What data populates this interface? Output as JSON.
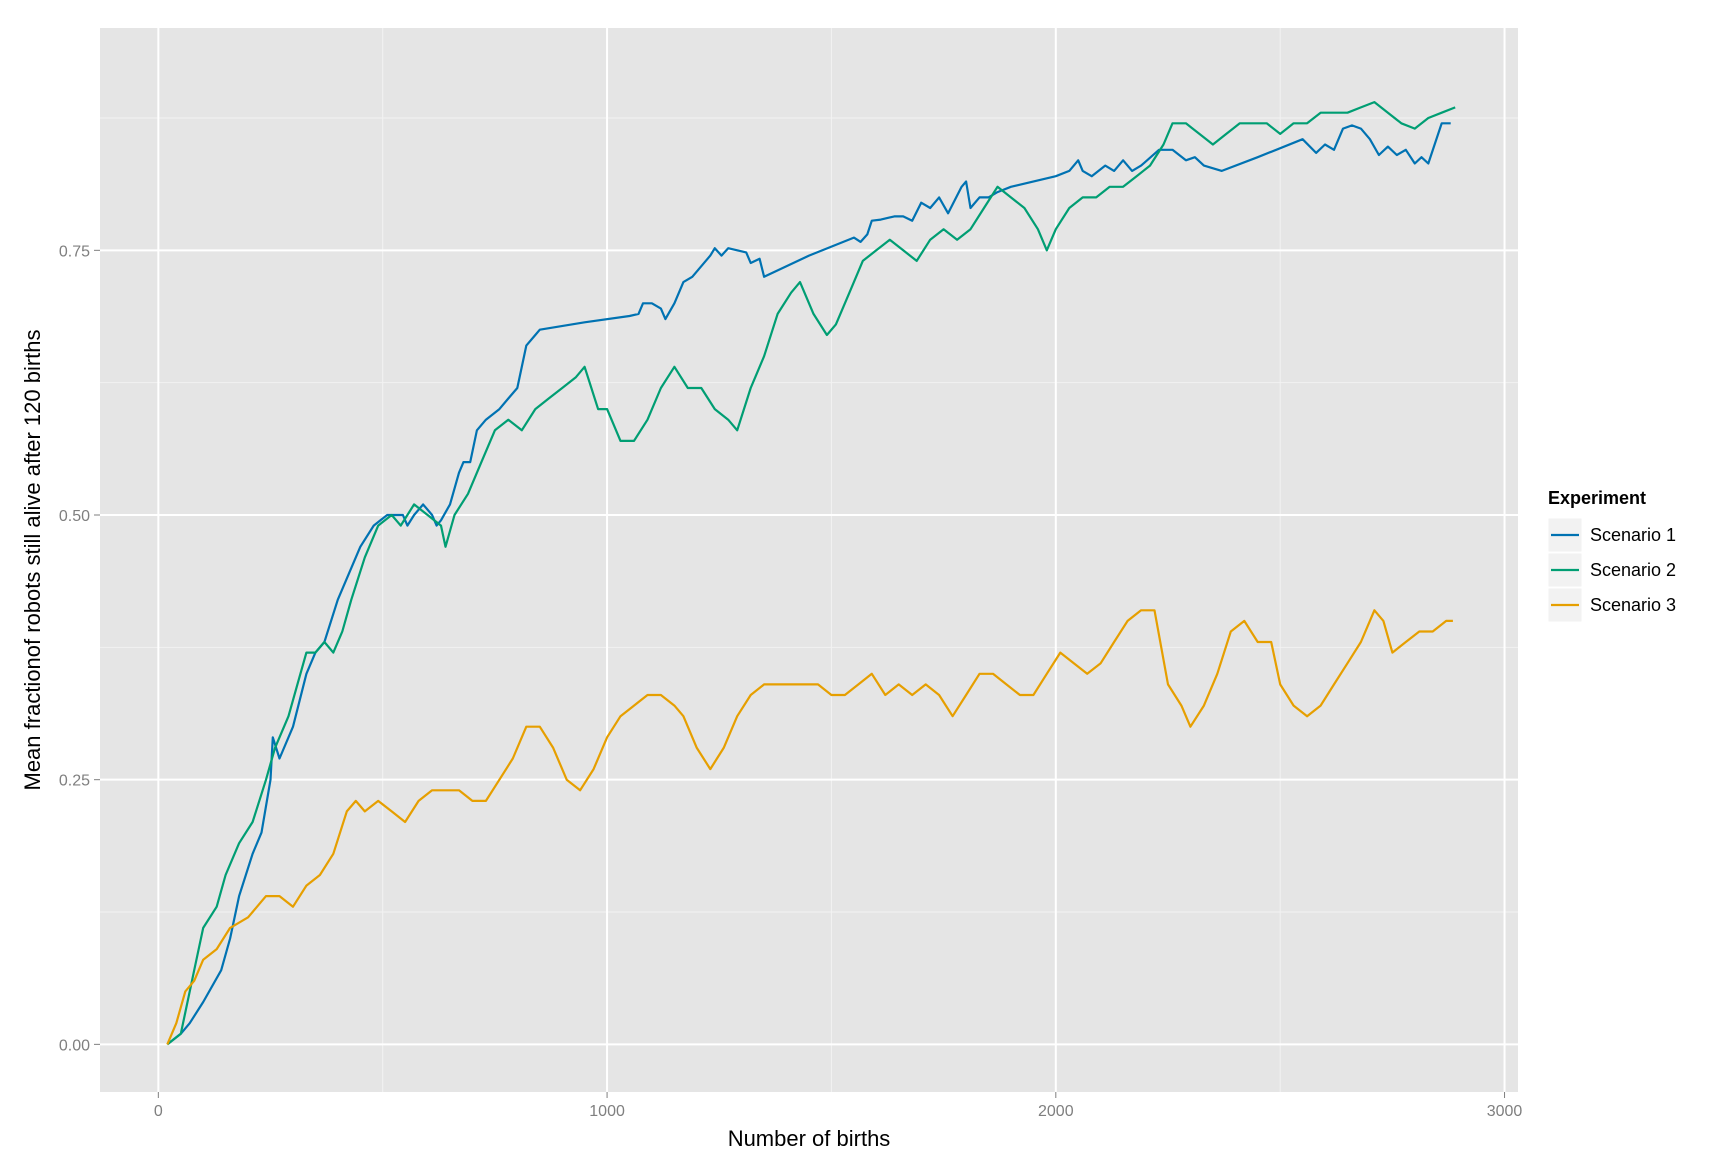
{
  "chart_data": {
    "type": "line",
    "xlabel": "Number of births",
    "ylabel": "Mean fractionof robots still alive after 120 births",
    "xlim": [
      -130,
      3030
    ],
    "ylim": [
      -0.045,
      0.96
    ],
    "x_ticks": [
      0,
      1000,
      2000,
      3000
    ],
    "x_tick_labels": [
      "0",
      "1000",
      "2000",
      "3000"
    ],
    "y_ticks": [
      0,
      0.25,
      0.5,
      0.75
    ],
    "y_tick_labels": [
      "0.00",
      "0.25",
      "0.50",
      "0.75"
    ],
    "grid": true,
    "background": "#e5e5e5",
    "legend": {
      "title": "Experiment",
      "position": "right"
    },
    "series": [
      {
        "name": "Scenario 1",
        "color": "#0072b2",
        "points": [
          [
            20,
            0
          ],
          [
            50,
            0.01
          ],
          [
            70,
            0.02
          ],
          [
            100,
            0.04
          ],
          [
            140,
            0.07
          ],
          [
            160,
            0.1
          ],
          [
            180,
            0.14
          ],
          [
            210,
            0.18
          ],
          [
            230,
            0.2
          ],
          [
            250,
            0.25
          ],
          [
            255,
            0.29
          ],
          [
            270,
            0.27
          ],
          [
            300,
            0.3
          ],
          [
            330,
            0.35
          ],
          [
            350,
            0.37
          ],
          [
            370,
            0.38
          ],
          [
            400,
            0.42
          ],
          [
            450,
            0.47
          ],
          [
            480,
            0.49
          ],
          [
            510,
            0.5
          ],
          [
            530,
            0.5
          ],
          [
            545,
            0.5
          ],
          [
            555,
            0.49
          ],
          [
            570,
            0.5
          ],
          [
            590,
            0.51
          ],
          [
            610,
            0.5
          ],
          [
            620,
            0.49
          ],
          [
            630,
            0.495
          ],
          [
            650,
            0.51
          ],
          [
            670,
            0.54
          ],
          [
            680,
            0.55
          ],
          [
            695,
            0.55
          ],
          [
            710,
            0.58
          ],
          [
            730,
            0.59
          ],
          [
            760,
            0.6
          ],
          [
            780,
            0.61
          ],
          [
            800,
            0.62
          ],
          [
            820,
            0.66
          ],
          [
            840,
            0.67
          ],
          [
            850,
            0.675
          ],
          [
            950,
            0.682
          ],
          [
            1050,
            0.688
          ],
          [
            1070,
            0.69
          ],
          [
            1080,
            0.7
          ],
          [
            1100,
            0.7
          ],
          [
            1120,
            0.695
          ],
          [
            1130,
            0.685
          ],
          [
            1150,
            0.7
          ],
          [
            1170,
            0.72
          ],
          [
            1190,
            0.725
          ],
          [
            1210,
            0.735
          ],
          [
            1230,
            0.745
          ],
          [
            1240,
            0.752
          ],
          [
            1255,
            0.745
          ],
          [
            1270,
            0.752
          ],
          [
            1290,
            0.75
          ],
          [
            1310,
            0.748
          ],
          [
            1320,
            0.738
          ],
          [
            1340,
            0.742
          ],
          [
            1350,
            0.725
          ],
          [
            1450,
            0.745
          ],
          [
            1550,
            0.762
          ],
          [
            1565,
            0.758
          ],
          [
            1580,
            0.765
          ],
          [
            1590,
            0.778
          ],
          [
            1610,
            0.779
          ],
          [
            1640,
            0.782
          ],
          [
            1660,
            0.782
          ],
          [
            1680,
            0.778
          ],
          [
            1700,
            0.795
          ],
          [
            1720,
            0.79
          ],
          [
            1740,
            0.8
          ],
          [
            1760,
            0.785
          ],
          [
            1790,
            0.81
          ],
          [
            1800,
            0.815
          ],
          [
            1810,
            0.79
          ],
          [
            1830,
            0.8
          ],
          [
            1850,
            0.8
          ],
          [
            1870,
            0.805
          ],
          [
            1900,
            0.81
          ],
          [
            2000,
            0.82
          ],
          [
            2030,
            0.825
          ],
          [
            2050,
            0.835
          ],
          [
            2060,
            0.825
          ],
          [
            2080,
            0.82
          ],
          [
            2110,
            0.83
          ],
          [
            2130,
            0.825
          ],
          [
            2150,
            0.835
          ],
          [
            2170,
            0.825
          ],
          [
            2190,
            0.83
          ],
          [
            2230,
            0.845
          ],
          [
            2260,
            0.845
          ],
          [
            2290,
            0.835
          ],
          [
            2310,
            0.838
          ],
          [
            2330,
            0.83
          ],
          [
            2370,
            0.825
          ],
          [
            2450,
            0.838
          ],
          [
            2550,
            0.855
          ],
          [
            2580,
            0.842
          ],
          [
            2600,
            0.85
          ],
          [
            2620,
            0.845
          ],
          [
            2640,
            0.865
          ],
          [
            2660,
            0.868
          ],
          [
            2680,
            0.865
          ],
          [
            2700,
            0.855
          ],
          [
            2720,
            0.84
          ],
          [
            2740,
            0.848
          ],
          [
            2760,
            0.84
          ],
          [
            2780,
            0.845
          ],
          [
            2800,
            0.832
          ],
          [
            2815,
            0.838
          ],
          [
            2830,
            0.832
          ],
          [
            2860,
            0.87
          ],
          [
            2880,
            0.87
          ]
        ]
      },
      {
        "name": "Scenario 2",
        "color": "#009e73",
        "points": [
          [
            20,
            0
          ],
          [
            50,
            0.01
          ],
          [
            80,
            0.07
          ],
          [
            100,
            0.11
          ],
          [
            130,
            0.13
          ],
          [
            150,
            0.16
          ],
          [
            180,
            0.19
          ],
          [
            210,
            0.21
          ],
          [
            240,
            0.25
          ],
          [
            260,
            0.28
          ],
          [
            290,
            0.31
          ],
          [
            310,
            0.34
          ],
          [
            330,
            0.37
          ],
          [
            350,
            0.37
          ],
          [
            370,
            0.38
          ],
          [
            390,
            0.37
          ],
          [
            410,
            0.39
          ],
          [
            430,
            0.42
          ],
          [
            460,
            0.46
          ],
          [
            490,
            0.49
          ],
          [
            520,
            0.5
          ],
          [
            540,
            0.49
          ],
          [
            570,
            0.51
          ],
          [
            600,
            0.5
          ],
          [
            630,
            0.49
          ],
          [
            640,
            0.47
          ],
          [
            660,
            0.5
          ],
          [
            690,
            0.52
          ],
          [
            720,
            0.55
          ],
          [
            750,
            0.58
          ],
          [
            780,
            0.59
          ],
          [
            810,
            0.58
          ],
          [
            840,
            0.6
          ],
          [
            870,
            0.61
          ],
          [
            900,
            0.62
          ],
          [
            930,
            0.63
          ],
          [
            950,
            0.64
          ],
          [
            980,
            0.6
          ],
          [
            1000,
            0.6
          ],
          [
            1030,
            0.57
          ],
          [
            1060,
            0.57
          ],
          [
            1090,
            0.59
          ],
          [
            1120,
            0.62
          ],
          [
            1150,
            0.64
          ],
          [
            1180,
            0.62
          ],
          [
            1210,
            0.62
          ],
          [
            1240,
            0.6
          ],
          [
            1270,
            0.59
          ],
          [
            1290,
            0.58
          ],
          [
            1320,
            0.62
          ],
          [
            1350,
            0.65
          ],
          [
            1380,
            0.69
          ],
          [
            1410,
            0.71
          ],
          [
            1430,
            0.72
          ],
          [
            1460,
            0.69
          ],
          [
            1490,
            0.67
          ],
          [
            1510,
            0.68
          ],
          [
            1540,
            0.71
          ],
          [
            1570,
            0.74
          ],
          [
            1600,
            0.75
          ],
          [
            1630,
            0.76
          ],
          [
            1660,
            0.75
          ],
          [
            1690,
            0.74
          ],
          [
            1720,
            0.76
          ],
          [
            1750,
            0.77
          ],
          [
            1780,
            0.76
          ],
          [
            1810,
            0.77
          ],
          [
            1840,
            0.79
          ],
          [
            1870,
            0.81
          ],
          [
            1900,
            0.8
          ],
          [
            1930,
            0.79
          ],
          [
            1960,
            0.77
          ],
          [
            1980,
            0.75
          ],
          [
            2000,
            0.77
          ],
          [
            2030,
            0.79
          ],
          [
            2060,
            0.8
          ],
          [
            2090,
            0.8
          ],
          [
            2120,
            0.81
          ],
          [
            2150,
            0.81
          ],
          [
            2180,
            0.82
          ],
          [
            2210,
            0.83
          ],
          [
            2240,
            0.85
          ],
          [
            2260,
            0.87
          ],
          [
            2290,
            0.87
          ],
          [
            2320,
            0.86
          ],
          [
            2350,
            0.85
          ],
          [
            2380,
            0.86
          ],
          [
            2410,
            0.87
          ],
          [
            2440,
            0.87
          ],
          [
            2470,
            0.87
          ],
          [
            2500,
            0.86
          ],
          [
            2530,
            0.87
          ],
          [
            2560,
            0.87
          ],
          [
            2590,
            0.88
          ],
          [
            2620,
            0.88
          ],
          [
            2650,
            0.88
          ],
          [
            2680,
            0.885
          ],
          [
            2710,
            0.89
          ],
          [
            2740,
            0.88
          ],
          [
            2770,
            0.87
          ],
          [
            2800,
            0.865
          ],
          [
            2830,
            0.875
          ],
          [
            2860,
            0.88
          ],
          [
            2890,
            0.885
          ]
        ]
      },
      {
        "name": "Scenario 3",
        "color": "#e69f00",
        "points": [
          [
            20,
            0
          ],
          [
            40,
            0.02
          ],
          [
            60,
            0.05
          ],
          [
            80,
            0.06
          ],
          [
            100,
            0.08
          ],
          [
            130,
            0.09
          ],
          [
            160,
            0.11
          ],
          [
            200,
            0.12
          ],
          [
            240,
            0.14
          ],
          [
            270,
            0.14
          ],
          [
            300,
            0.13
          ],
          [
            330,
            0.15
          ],
          [
            360,
            0.16
          ],
          [
            390,
            0.18
          ],
          [
            420,
            0.22
          ],
          [
            440,
            0.23
          ],
          [
            460,
            0.22
          ],
          [
            490,
            0.23
          ],
          [
            520,
            0.22
          ],
          [
            550,
            0.21
          ],
          [
            580,
            0.23
          ],
          [
            610,
            0.24
          ],
          [
            640,
            0.24
          ],
          [
            670,
            0.24
          ],
          [
            700,
            0.23
          ],
          [
            730,
            0.23
          ],
          [
            760,
            0.25
          ],
          [
            790,
            0.27
          ],
          [
            820,
            0.3
          ],
          [
            850,
            0.3
          ],
          [
            880,
            0.28
          ],
          [
            910,
            0.25
          ],
          [
            940,
            0.24
          ],
          [
            970,
            0.26
          ],
          [
            1000,
            0.29
          ],
          [
            1030,
            0.31
          ],
          [
            1060,
            0.32
          ],
          [
            1090,
            0.33
          ],
          [
            1120,
            0.33
          ],
          [
            1150,
            0.32
          ],
          [
            1170,
            0.31
          ],
          [
            1200,
            0.28
          ],
          [
            1230,
            0.26
          ],
          [
            1260,
            0.28
          ],
          [
            1290,
            0.31
          ],
          [
            1320,
            0.33
          ],
          [
            1350,
            0.34
          ],
          [
            1380,
            0.34
          ],
          [
            1410,
            0.34
          ],
          [
            1440,
            0.34
          ],
          [
            1470,
            0.34
          ],
          [
            1500,
            0.33
          ],
          [
            1530,
            0.33
          ],
          [
            1560,
            0.34
          ],
          [
            1590,
            0.35
          ],
          [
            1620,
            0.33
          ],
          [
            1650,
            0.34
          ],
          [
            1680,
            0.33
          ],
          [
            1710,
            0.34
          ],
          [
            1740,
            0.33
          ],
          [
            1770,
            0.31
          ],
          [
            1800,
            0.33
          ],
          [
            1830,
            0.35
          ],
          [
            1860,
            0.35
          ],
          [
            1890,
            0.34
          ],
          [
            1920,
            0.33
          ],
          [
            1950,
            0.33
          ],
          [
            1980,
            0.35
          ],
          [
            2010,
            0.37
          ],
          [
            2040,
            0.36
          ],
          [
            2070,
            0.35
          ],
          [
            2100,
            0.36
          ],
          [
            2130,
            0.38
          ],
          [
            2160,
            0.4
          ],
          [
            2190,
            0.41
          ],
          [
            2220,
            0.41
          ],
          [
            2250,
            0.34
          ],
          [
            2280,
            0.32
          ],
          [
            2300,
            0.3
          ],
          [
            2330,
            0.32
          ],
          [
            2360,
            0.35
          ],
          [
            2390,
            0.39
          ],
          [
            2420,
            0.4
          ],
          [
            2450,
            0.38
          ],
          [
            2480,
            0.38
          ],
          [
            2500,
            0.34
          ],
          [
            2530,
            0.32
          ],
          [
            2560,
            0.31
          ],
          [
            2590,
            0.32
          ],
          [
            2620,
            0.34
          ],
          [
            2650,
            0.36
          ],
          [
            2680,
            0.38
          ],
          [
            2710,
            0.41
          ],
          [
            2730,
            0.4
          ],
          [
            2750,
            0.37
          ],
          [
            2780,
            0.38
          ],
          [
            2810,
            0.39
          ],
          [
            2840,
            0.39
          ],
          [
            2870,
            0.4
          ],
          [
            2885,
            0.4
          ]
        ]
      }
    ]
  }
}
